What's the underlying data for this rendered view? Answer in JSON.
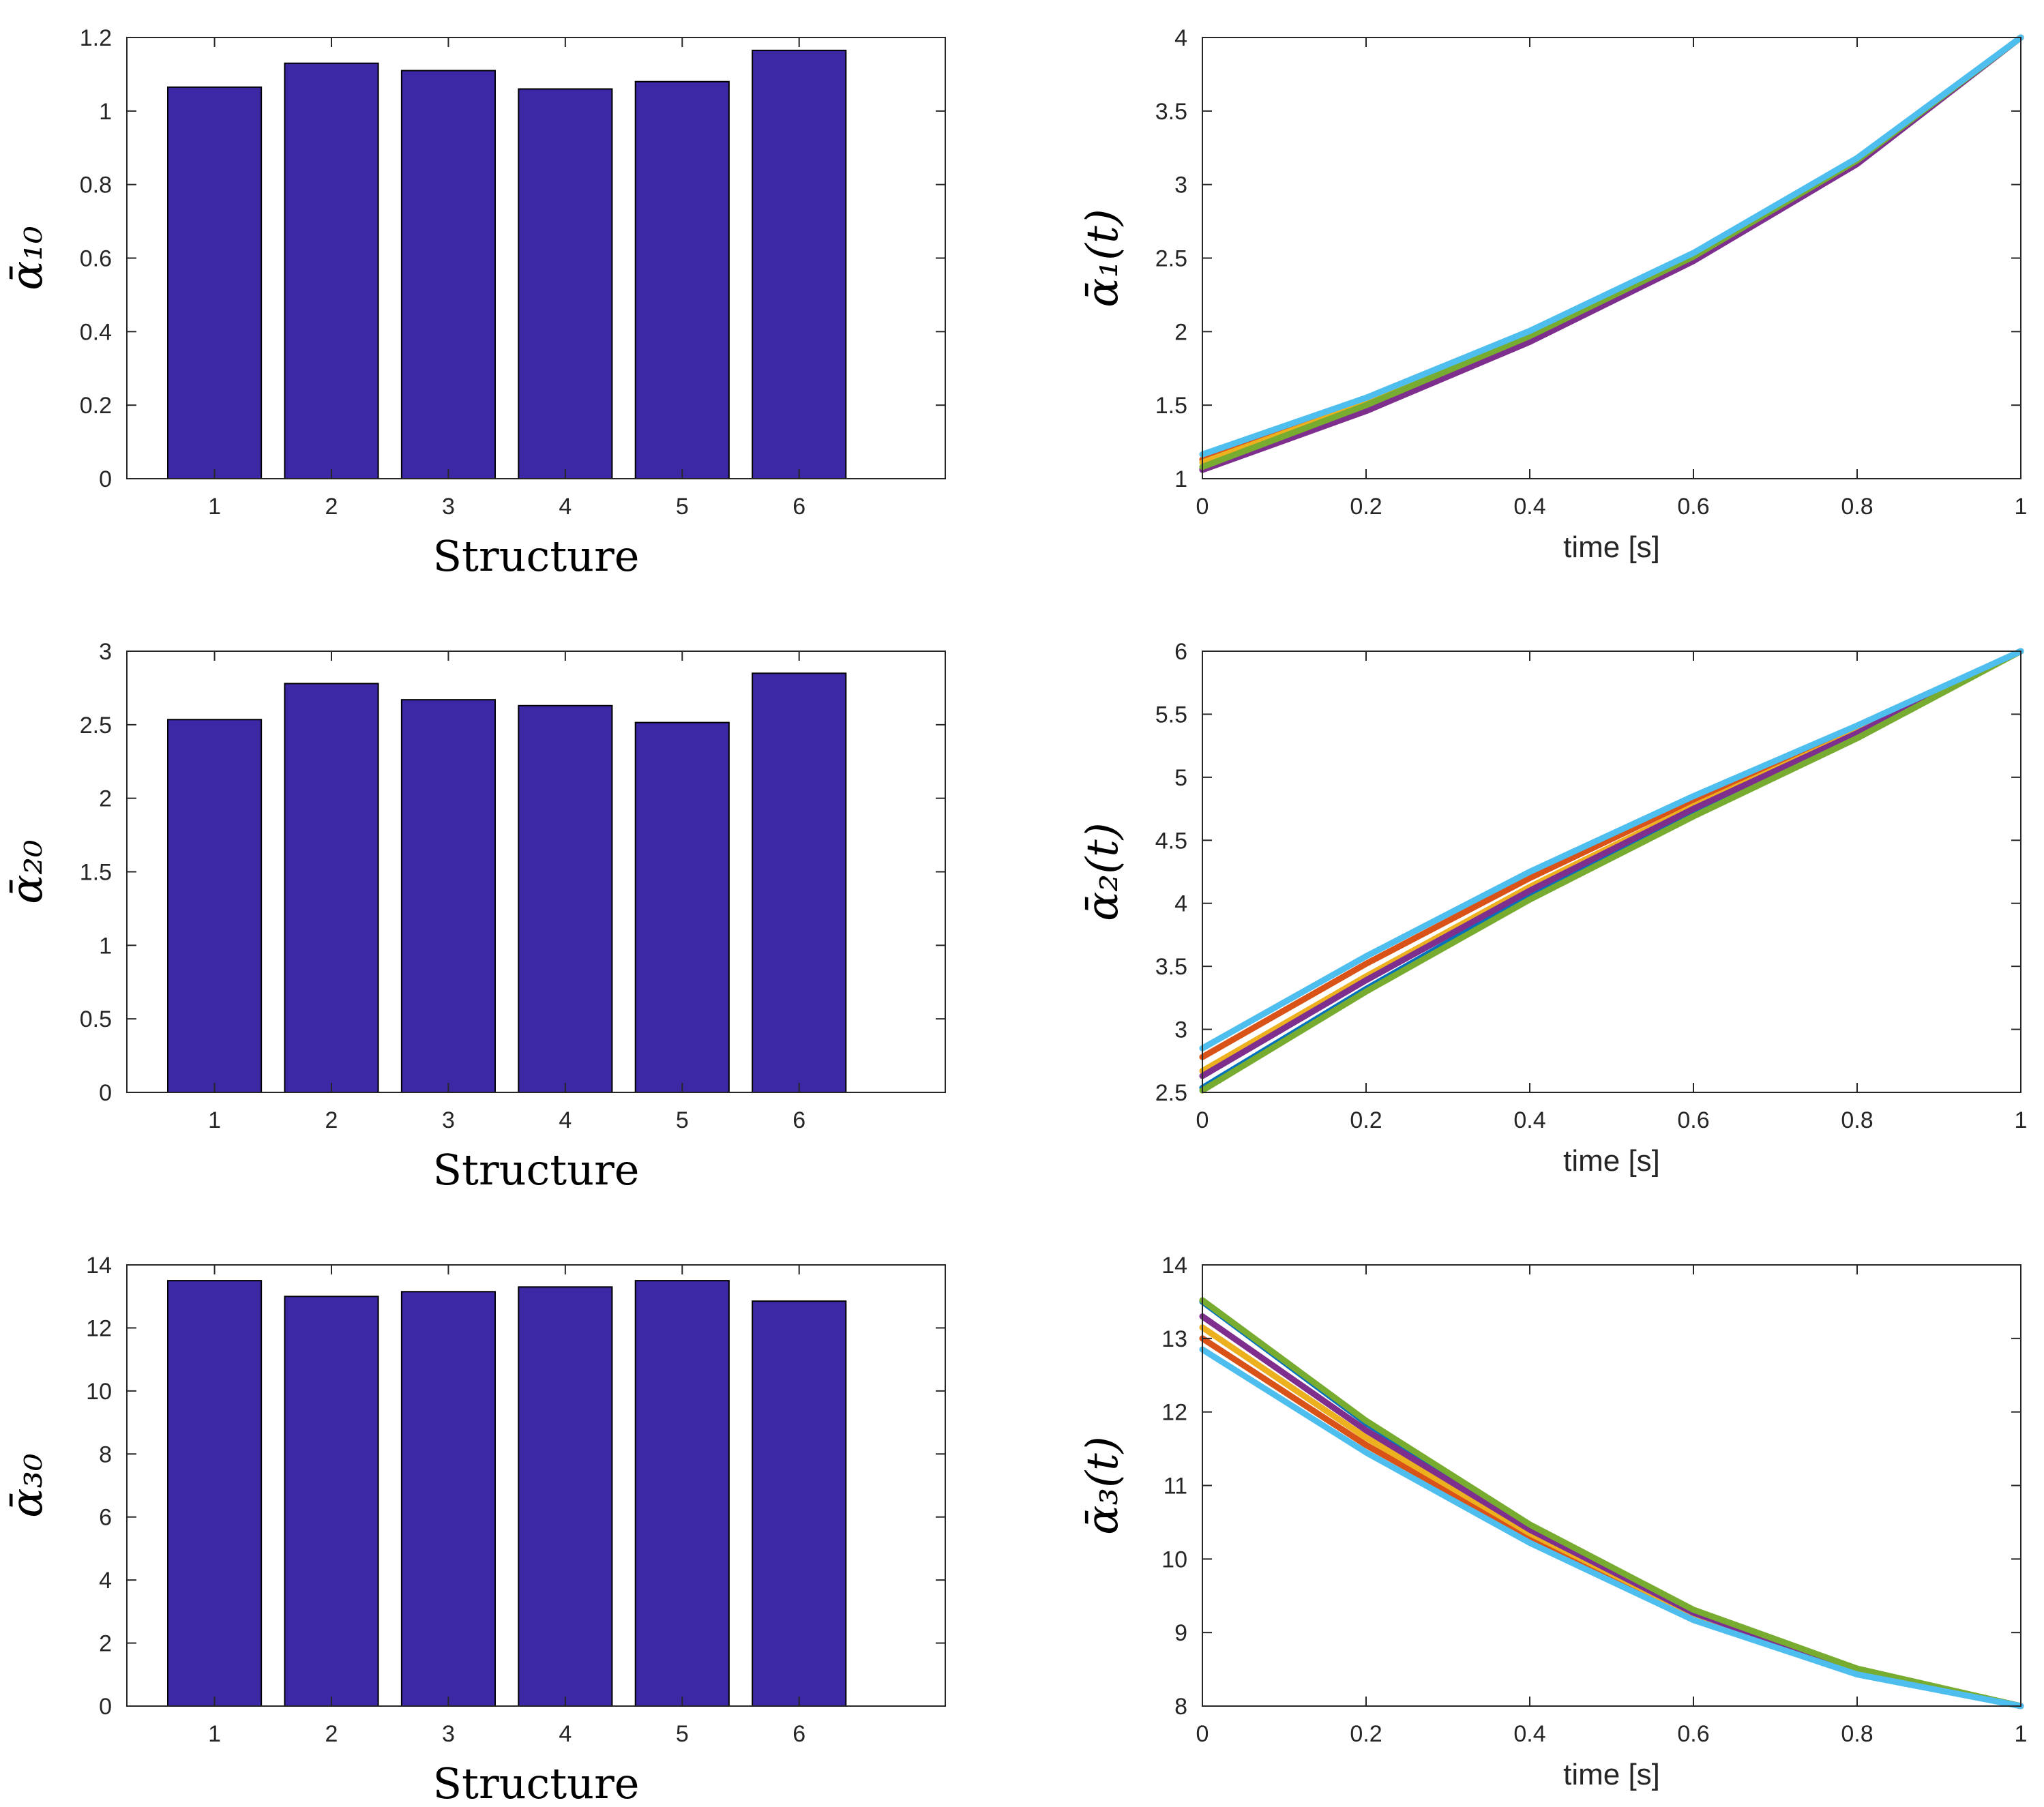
{
  "chart_data": [
    {
      "type": "bar",
      "ylabel": "ᾱ₁₀",
      "xlabel": "Structure",
      "categories": [
        "1",
        "2",
        "3",
        "4",
        "5",
        "6"
      ],
      "values": [
        1.065,
        1.13,
        1.11,
        1.06,
        1.08,
        1.165
      ],
      "ylim": [
        0,
        1.2
      ],
      "xlim": [
        0.25,
        7.25
      ],
      "yticks": [
        0,
        0.2,
        0.4,
        0.6,
        0.8,
        1,
        1.2
      ],
      "ytick_labels": [
        "0",
        "0.2",
        "0.4",
        "0.6",
        "0.8",
        "1",
        "1.2"
      ],
      "grid": false,
      "bar_color": "#3c27a4"
    },
    {
      "type": "line",
      "ylabel": "ᾱ₁(t)",
      "xlabel": "time [s]",
      "xlim": [
        0,
        1
      ],
      "ylim": [
        1,
        4
      ],
      "xticks": [
        0,
        0.2,
        0.4,
        0.6,
        0.8,
        1
      ],
      "xtick_labels": [
        "0",
        "0.2",
        "0.4",
        "0.6",
        "0.8",
        "1"
      ],
      "yticks": [
        1,
        1.5,
        2,
        2.5,
        3,
        3.5,
        4
      ],
      "ytick_labels": [
        "1",
        "1.5",
        "2",
        "2.5",
        "3",
        "3.5",
        "4"
      ],
      "grid": false,
      "series": [
        {
          "color": "#0072bd",
          "x": [
            0,
            0.2,
            0.4,
            0.6,
            0.8,
            1
          ],
          "y": [
            1.065,
            1.48,
            1.955,
            2.5,
            3.16,
            4.0
          ]
        },
        {
          "color": "#d95319",
          "x": [
            0,
            0.2,
            0.4,
            0.6,
            0.8,
            1
          ],
          "y": [
            1.13,
            1.525,
            1.985,
            2.52,
            3.17,
            4.0
          ]
        },
        {
          "color": "#edb120",
          "x": [
            0,
            0.2,
            0.4,
            0.6,
            0.8,
            1
          ],
          "y": [
            1.11,
            1.51,
            1.975,
            2.51,
            3.165,
            4.0
          ]
        },
        {
          "color": "#7e2f8e",
          "x": [
            0,
            0.2,
            0.4,
            0.6,
            0.8,
            1
          ],
          "y": [
            1.06,
            1.46,
            1.93,
            2.48,
            3.14,
            4.0
          ]
        },
        {
          "color": "#77ac30",
          "x": [
            0,
            0.2,
            0.4,
            0.6,
            0.8,
            1
          ],
          "y": [
            1.08,
            1.5,
            1.97,
            2.51,
            3.165,
            4.0
          ]
        },
        {
          "color": "#4dbeee",
          "x": [
            0,
            0.2,
            0.4,
            0.6,
            0.8,
            1
          ],
          "y": [
            1.165,
            1.55,
            2.005,
            2.535,
            3.18,
            4.0
          ]
        }
      ]
    },
    {
      "type": "bar",
      "ylabel": "ᾱ₂₀",
      "xlabel": "Structure",
      "categories": [
        "1",
        "2",
        "3",
        "4",
        "5",
        "6"
      ],
      "values": [
        2.535,
        2.78,
        2.67,
        2.63,
        2.515,
        2.85
      ],
      "ylim": [
        0,
        3
      ],
      "xlim": [
        0.25,
        7.25
      ],
      "yticks": [
        0,
        0.5,
        1,
        1.5,
        2,
        2.5,
        3
      ],
      "ytick_labels": [
        "0",
        "0.5",
        "1",
        "1.5",
        "2",
        "2.5",
        "3"
      ],
      "grid": false,
      "bar_color": "#3c27a4"
    },
    {
      "type": "line",
      "ylabel": "ᾱ₂(t)",
      "xlabel": "time [s]",
      "xlim": [
        0,
        1
      ],
      "ylim": [
        2.5,
        6
      ],
      "xticks": [
        0,
        0.2,
        0.4,
        0.6,
        0.8,
        1
      ],
      "xtick_labels": [
        "0",
        "0.2",
        "0.4",
        "0.6",
        "0.8",
        "1"
      ],
      "yticks": [
        2.5,
        3,
        3.5,
        4,
        4.5,
        5,
        5.5,
        6
      ],
      "ytick_labels": [
        "2.5",
        "3",
        "3.5",
        "4",
        "4.5",
        "5",
        "5.5",
        "6"
      ],
      "grid": false,
      "series": [
        {
          "color": "#0072bd",
          "x": [
            0,
            0.2,
            0.4,
            0.6,
            0.8,
            1
          ],
          "y": [
            2.535,
            3.32,
            4.06,
            4.72,
            5.33,
            6.0
          ]
        },
        {
          "color": "#d95319",
          "x": [
            0,
            0.2,
            0.4,
            0.6,
            0.8,
            1
          ],
          "y": [
            2.78,
            3.52,
            4.2,
            4.82,
            5.39,
            6.0
          ]
        },
        {
          "color": "#edb120",
          "x": [
            0,
            0.2,
            0.4,
            0.6,
            0.8,
            1
          ],
          "y": [
            2.67,
            3.42,
            4.13,
            4.77,
            5.36,
            6.0
          ]
        },
        {
          "color": "#7e2f8e",
          "x": [
            0,
            0.2,
            0.4,
            0.6,
            0.8,
            1
          ],
          "y": [
            2.63,
            3.39,
            4.1,
            4.75,
            5.35,
            6.0
          ]
        },
        {
          "color": "#77ac30",
          "x": [
            0,
            0.2,
            0.4,
            0.6,
            0.8,
            1
          ],
          "y": [
            2.515,
            3.3,
            4.03,
            4.69,
            5.31,
            6.0
          ]
        },
        {
          "color": "#4dbeee",
          "x": [
            0,
            0.2,
            0.4,
            0.6,
            0.8,
            1
          ],
          "y": [
            2.85,
            3.58,
            4.25,
            4.85,
            5.41,
            6.0
          ]
        }
      ]
    },
    {
      "type": "bar",
      "ylabel": "ᾱ₃₀",
      "xlabel": "Structure",
      "categories": [
        "1",
        "2",
        "3",
        "4",
        "5",
        "6"
      ],
      "values": [
        13.5,
        13.0,
        13.15,
        13.3,
        13.5,
        12.85
      ],
      "ylim": [
        0,
        14
      ],
      "xlim": [
        0.25,
        7.25
      ],
      "yticks": [
        0,
        2,
        4,
        6,
        8,
        10,
        12,
        14
      ],
      "ytick_labels": [
        "0",
        "2",
        "4",
        "6",
        "8",
        "10",
        "12",
        "14"
      ],
      "grid": false,
      "bar_color": "#3c27a4"
    },
    {
      "type": "line",
      "ylabel": "ᾱ₃(t)",
      "xlabel": "time [s]",
      "xlim": [
        0,
        1
      ],
      "ylim": [
        8,
        14
      ],
      "xticks": [
        0,
        0.2,
        0.4,
        0.6,
        0.8,
        1
      ],
      "xtick_labels": [
        "0",
        "0.2",
        "0.4",
        "0.6",
        "0.8",
        "1"
      ],
      "yticks": [
        8,
        9,
        10,
        11,
        12,
        13,
        14
      ],
      "ytick_labels": [
        "8",
        "9",
        "10",
        "11",
        "12",
        "13",
        "14"
      ],
      "grid": false,
      "series": [
        {
          "color": "#0072bd",
          "x": [
            0,
            0.2,
            0.4,
            0.6,
            0.8,
            1
          ],
          "y": [
            13.5,
            11.85,
            10.45,
            9.3,
            8.5,
            8.0
          ]
        },
        {
          "color": "#d95319",
          "x": [
            0,
            0.2,
            0.4,
            0.6,
            0.8,
            1
          ],
          "y": [
            13.0,
            11.55,
            10.3,
            9.22,
            8.46,
            8.0
          ]
        },
        {
          "color": "#edb120",
          "x": [
            0,
            0.2,
            0.4,
            0.6,
            0.8,
            1
          ],
          "y": [
            13.15,
            11.65,
            10.35,
            9.25,
            8.47,
            8.0
          ]
        },
        {
          "color": "#7e2f8e",
          "x": [
            0,
            0.2,
            0.4,
            0.6,
            0.8,
            1
          ],
          "y": [
            13.3,
            11.75,
            10.4,
            9.27,
            8.48,
            8.0
          ]
        },
        {
          "color": "#77ac30",
          "x": [
            0,
            0.2,
            0.4,
            0.6,
            0.8,
            1
          ],
          "y": [
            13.52,
            11.88,
            10.47,
            9.31,
            8.51,
            8.0
          ]
        },
        {
          "color": "#4dbeee",
          "x": [
            0,
            0.2,
            0.4,
            0.6,
            0.8,
            1
          ],
          "y": [
            12.85,
            11.45,
            10.22,
            9.17,
            8.43,
            8.0
          ]
        }
      ]
    }
  ]
}
